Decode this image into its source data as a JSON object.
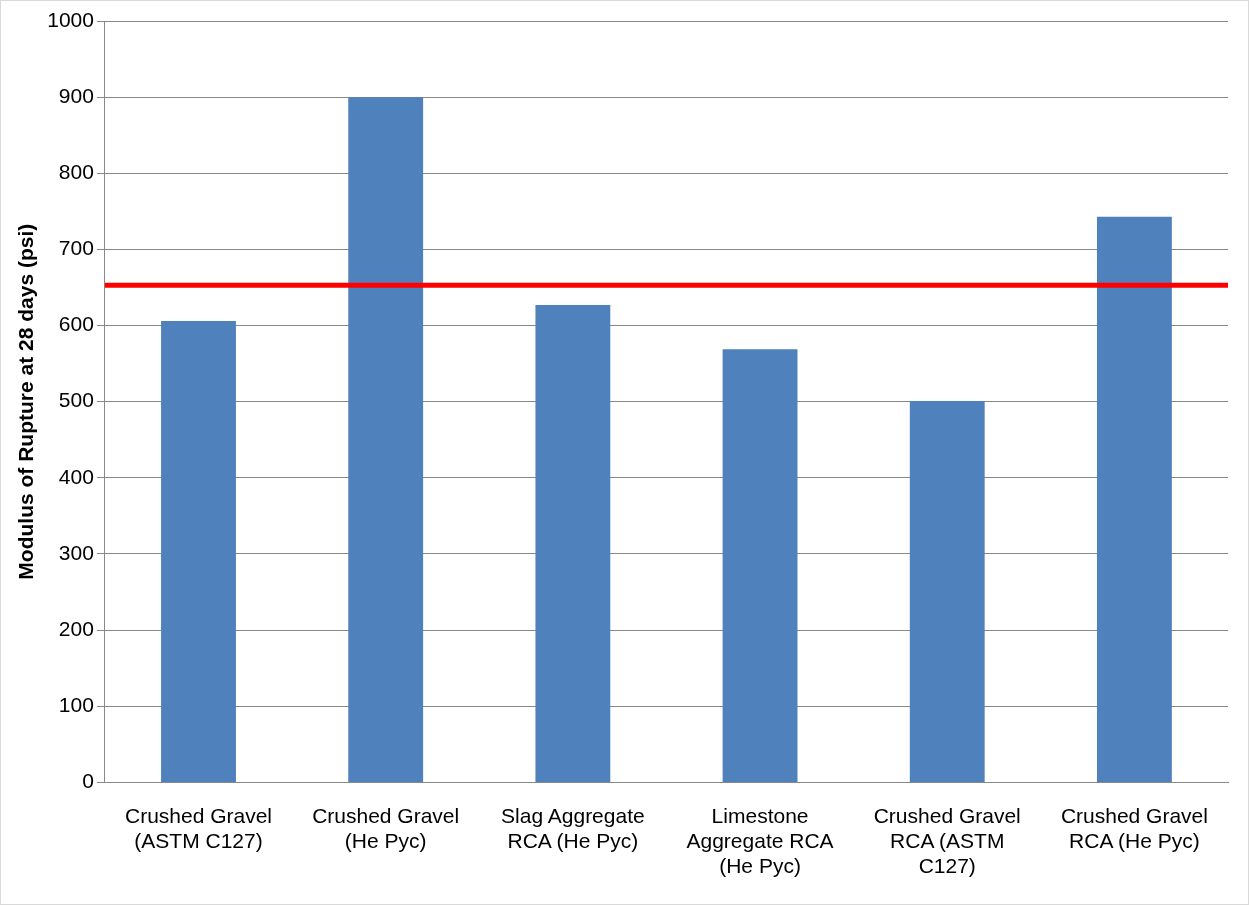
{
  "chart_data": {
    "type": "bar",
    "ylabel": "Modulus of Rupture at 28 days (psi)",
    "categories": [
      "Crushed Gravel (ASTM C127)",
      "Crushed Gravel (He Pyc)",
      "Slag Aggregate RCA (He Pyc)",
      "Limestone Aggregate RCA (He Pyc)",
      "Crushed Gravel RCA (ASTM C127)",
      "Crushed Gravel RCA (He Pyc)"
    ],
    "values": [
      606,
      900,
      627,
      569,
      501,
      743
    ],
    "color": "#4f81bd",
    "ylim": [
      0,
      1000
    ],
    "yticks": [
      0,
      100,
      200,
      300,
      400,
      500,
      600,
      700,
      800,
      900,
      1000
    ],
    "grid": "y",
    "ref_lines": [
      {
        "axis": "y",
        "value": 653,
        "color": "#ff0000"
      }
    ]
  }
}
